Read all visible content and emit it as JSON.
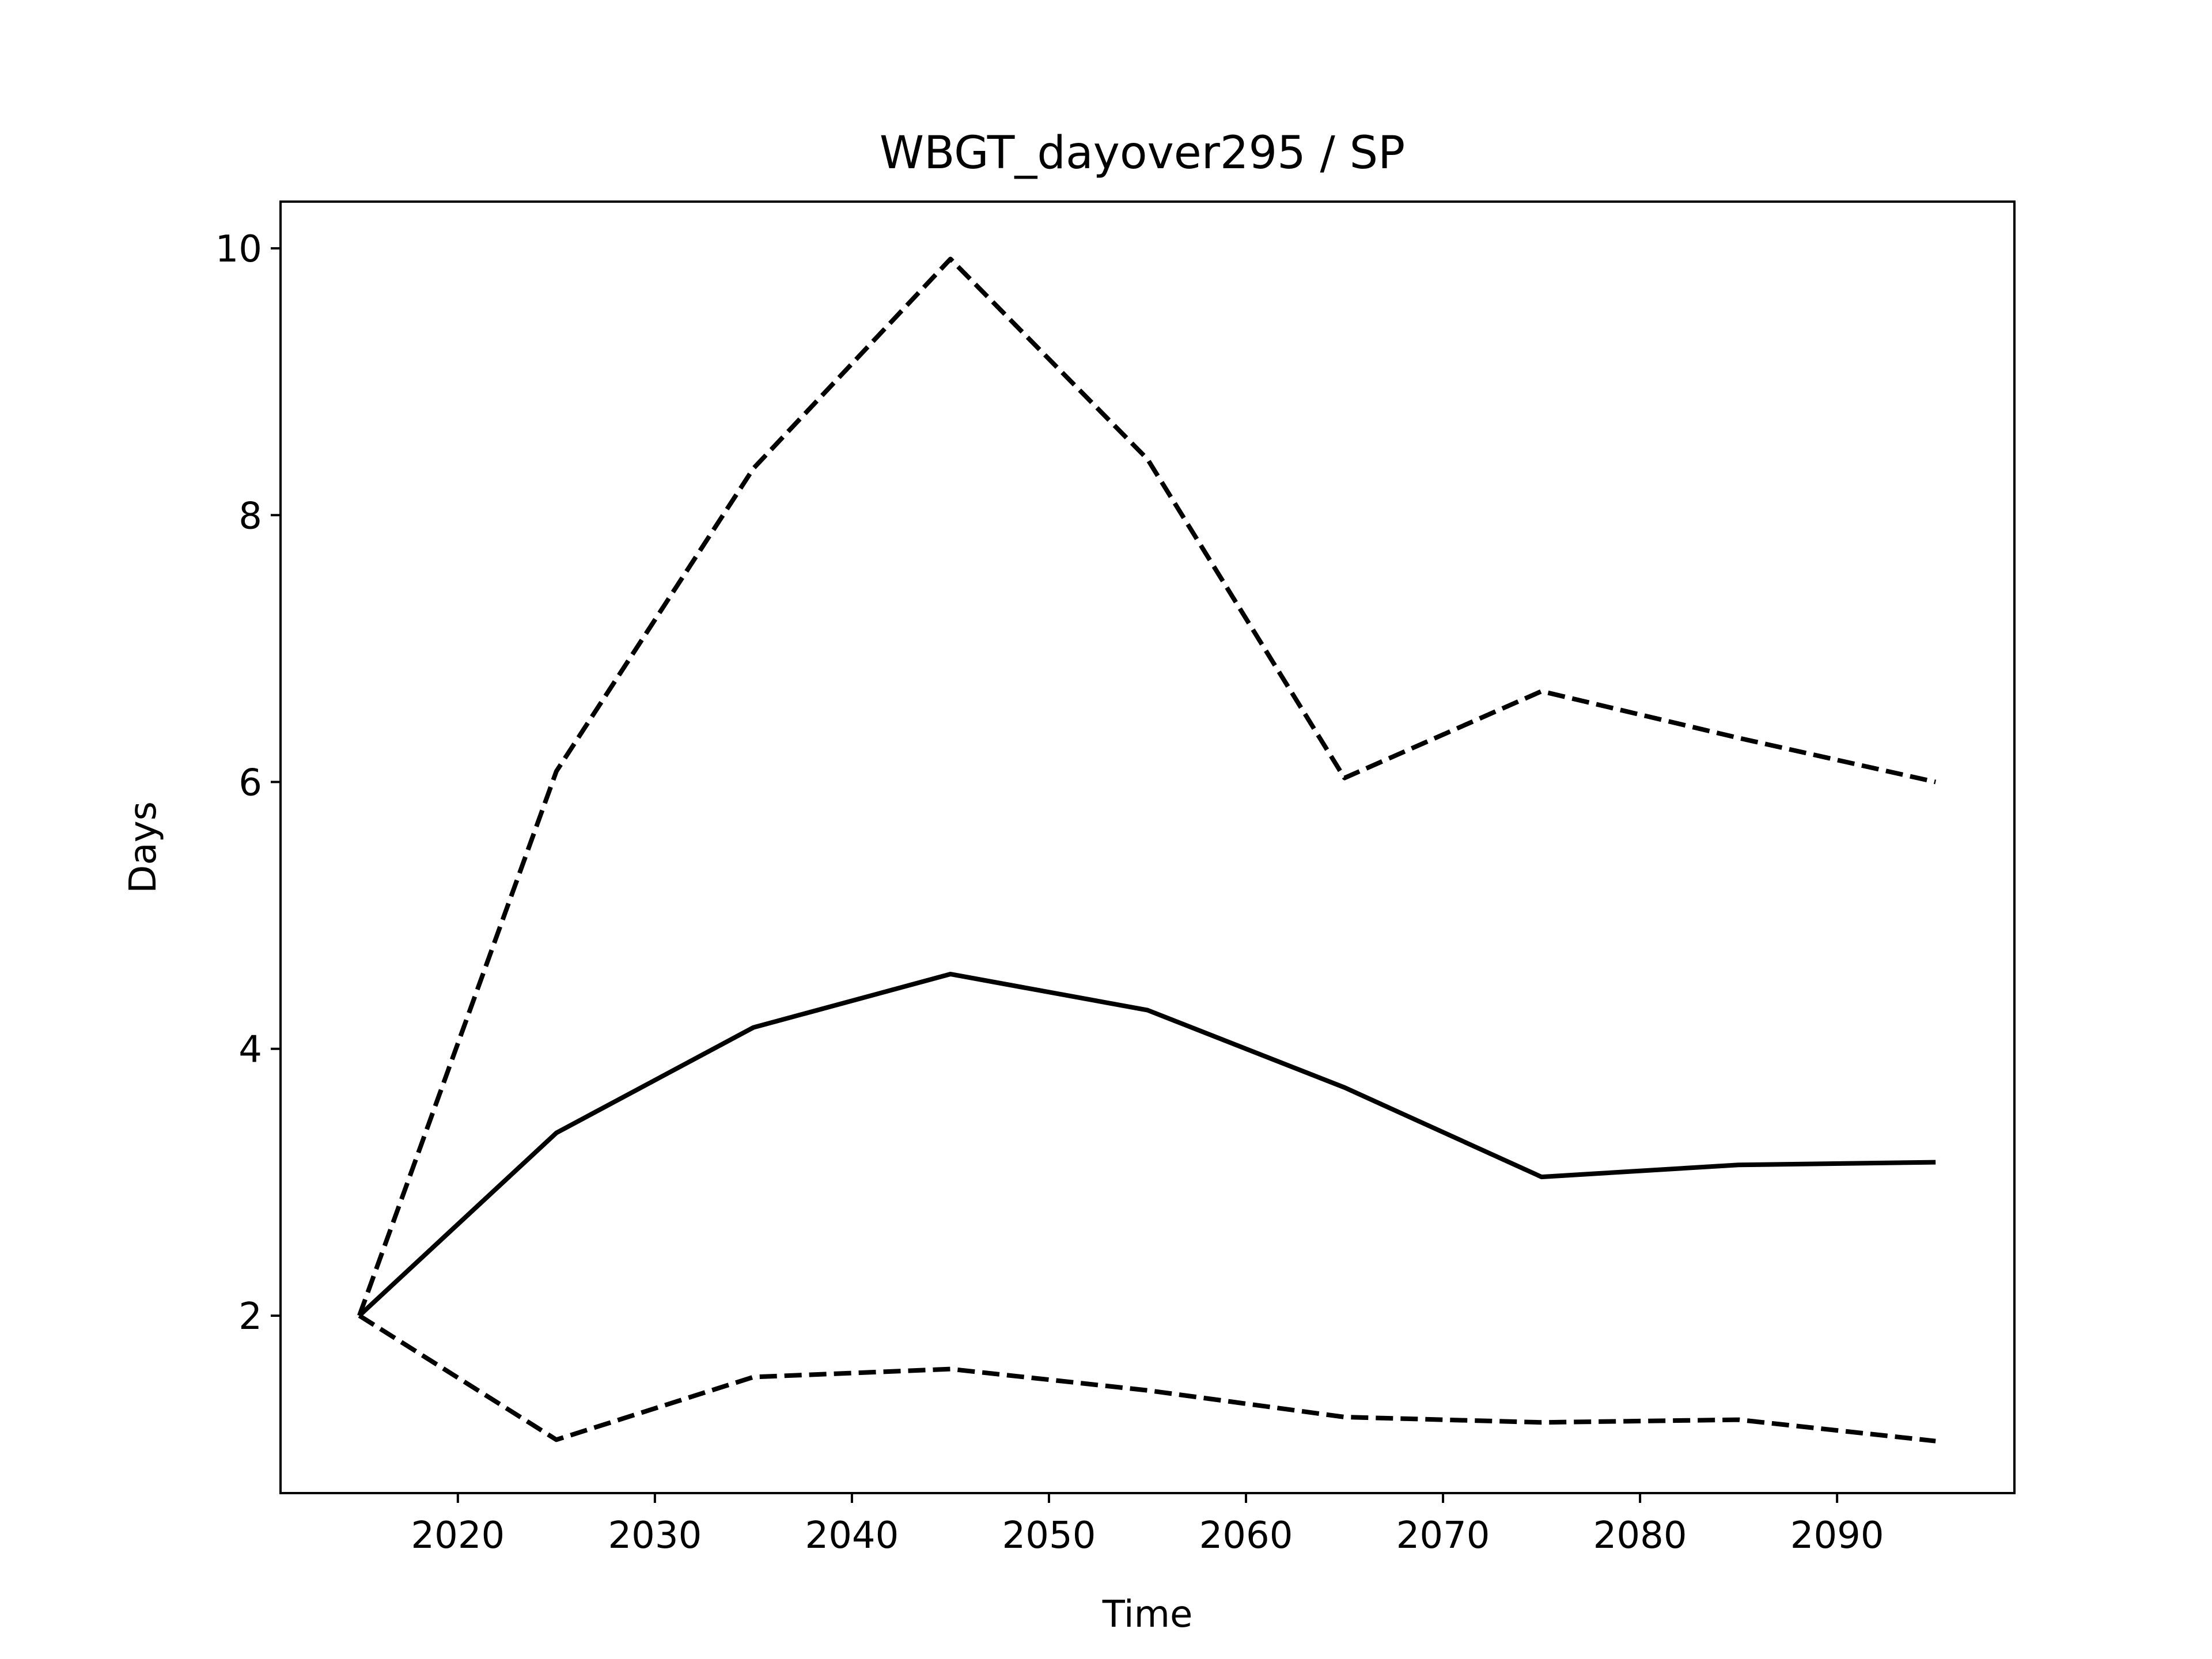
{
  "chart_data": {
    "type": "line",
    "title": "WBGT_dayover295 / SP",
    "xlabel": "Time",
    "ylabel": "Days",
    "xlim": [
      2011,
      2099
    ],
    "ylim": [
      0.67,
      10.35
    ],
    "xticks": [
      2020,
      2030,
      2040,
      2050,
      2060,
      2070,
      2080,
      2090
    ],
    "yticks": [
      2,
      4,
      6,
      8,
      10
    ],
    "grid": false,
    "x": [
      2015,
      2025,
      2035,
      2045,
      2055,
      2065,
      2075,
      2085,
      2095
    ],
    "series": [
      {
        "style": "solid",
        "color": "#000000",
        "values": [
          2.0,
          3.37,
          4.16,
          4.56,
          4.29,
          3.71,
          3.04,
          3.13,
          3.15
        ]
      },
      {
        "style": "dashed",
        "color": "#000000",
        "values": [
          2.0,
          6.08,
          8.35,
          9.92,
          8.42,
          6.03,
          6.68,
          6.33,
          6.0
        ]
      },
      {
        "style": "dashed",
        "color": "#000000",
        "values": [
          2.0,
          1.07,
          1.54,
          1.6,
          1.44,
          1.24,
          1.2,
          1.22,
          1.06
        ]
      }
    ]
  }
}
